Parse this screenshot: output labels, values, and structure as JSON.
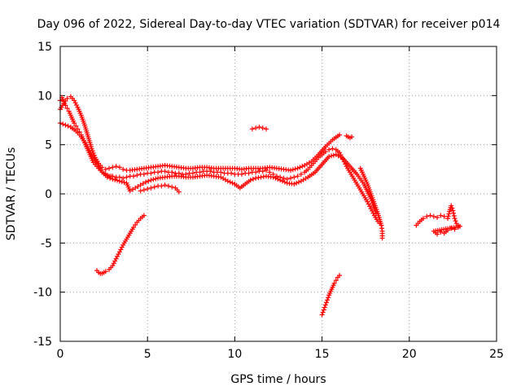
{
  "chart_data": {
    "type": "scatter",
    "title": "Day 096 of 2022, Sidereal Day-to-day VTEC variation (SDTVAR) for receiver p014",
    "xlabel": "GPS time / hours",
    "ylabel": "SDTVAR / TECUs",
    "xlim": [
      0,
      25
    ],
    "ylim": [
      -15,
      15
    ],
    "xticks": [
      "0",
      "5",
      "10",
      "15",
      "20",
      "25"
    ],
    "yticks": [
      "-15",
      "-10",
      "-5",
      "0",
      "5",
      "10",
      "15"
    ],
    "grid": true,
    "marker": "+",
    "color": "#ff0000",
    "series": [
      {
        "name": "main-trace",
        "x": [
          0.0,
          0.1,
          0.2,
          0.3,
          0.4,
          0.5,
          0.6,
          0.7,
          0.8,
          0.9,
          1.0,
          1.1,
          1.2,
          1.3,
          1.4,
          1.5,
          1.6,
          1.7,
          1.8,
          1.9,
          2.0,
          2.1,
          2.2,
          2.3,
          2.4,
          2.5,
          2.6,
          2.7,
          2.8,
          2.9,
          3.0,
          3.2,
          3.4,
          3.6,
          3.8,
          4.0,
          4.2,
          4.4,
          4.6,
          4.8,
          5.0,
          5.2,
          5.4,
          5.6,
          5.8,
          6.0,
          6.2,
          6.4,
          6.6,
          6.8,
          7.0,
          7.2,
          7.4,
          7.6,
          7.8,
          8.0,
          8.2,
          8.4,
          8.6,
          8.8,
          9.0,
          9.2,
          9.4,
          9.6,
          9.8,
          10.0,
          10.2,
          10.4,
          10.6,
          10.8,
          11.0,
          11.2,
          11.4,
          11.6,
          11.8,
          12.0,
          12.2,
          12.4,
          12.6,
          12.8,
          13.0,
          13.2,
          13.4,
          13.6,
          13.8,
          14.0,
          14.2,
          14.4,
          14.6,
          14.8,
          15.0,
          15.2,
          15.4,
          15.6,
          15.8,
          16.0,
          16.2,
          16.4,
          16.6,
          16.8,
          17.0,
          17.2,
          17.4,
          17.6,
          17.8,
          18.0,
          18.2,
          18.4
        ],
        "y": [
          9.5,
          9.8,
          9.4,
          9.0,
          8.7,
          8.4,
          8.0,
          7.6,
          7.2,
          6.9,
          6.6,
          6.3,
          6.0,
          5.6,
          5.2,
          4.8,
          4.4,
          4.0,
          3.6,
          3.2,
          3.0,
          2.8,
          2.6,
          2.4,
          2.2,
          2.1,
          2.0,
          1.9,
          1.8,
          1.8,
          1.8,
          1.7,
          1.7,
          1.6,
          1.7,
          1.8,
          1.8,
          1.9,
          2.0,
          2.0,
          2.1,
          2.1,
          2.2,
          2.2,
          2.3,
          2.3,
          2.2,
          2.2,
          2.1,
          2.1,
          2.0,
          2.0,
          2.1,
          2.1,
          2.2,
          2.2,
          2.3,
          2.3,
          2.3,
          2.2,
          2.2,
          2.2,
          2.1,
          2.1,
          2.1,
          2.0,
          2.0,
          2.0,
          2.1,
          2.1,
          2.2,
          2.2,
          2.3,
          2.3,
          2.4,
          2.2,
          2.0,
          1.8,
          1.7,
          1.6,
          1.5,
          1.6,
          1.7,
          1.8,
          2.0,
          2.2,
          2.5,
          2.9,
          3.3,
          3.7,
          4.0,
          4.3,
          4.5,
          4.6,
          4.5,
          4.2,
          3.5,
          2.8,
          2.2,
          1.6,
          1.0,
          0.4,
          -0.2,
          -0.8,
          -1.5,
          -2.2,
          -2.8,
          -3.2
        ]
      },
      {
        "name": "upper-band",
        "x": [
          0.0,
          0.2,
          0.4,
          0.6,
          0.8,
          1.0,
          1.2,
          1.4,
          1.6,
          1.8,
          2.0,
          2.2,
          2.4,
          2.6,
          2.8,
          3.0,
          3.2,
          3.4,
          3.6,
          3.8,
          4.0,
          4.4,
          4.8,
          5.2,
          5.6,
          6.0,
          6.4,
          6.8,
          7.2,
          7.6,
          8.0,
          8.4,
          8.8,
          9.2,
          9.6,
          10.0,
          10.4,
          10.8,
          11.2,
          11.6,
          12.0,
          12.4,
          12.8,
          13.2,
          13.6,
          14.0,
          14.4,
          14.8,
          15.2,
          15.6,
          16.0
        ],
        "y": [
          8.6,
          9.2,
          9.7,
          9.9,
          9.5,
          8.8,
          8.0,
          7.0,
          5.8,
          4.6,
          3.7,
          3.1,
          2.7,
          2.5,
          2.6,
          2.7,
          2.8,
          2.7,
          2.5,
          2.4,
          2.4,
          2.5,
          2.6,
          2.7,
          2.8,
          2.9,
          2.8,
          2.7,
          2.6,
          2.6,
          2.7,
          2.7,
          2.6,
          2.6,
          2.6,
          2.6,
          2.5,
          2.6,
          2.6,
          2.6,
          2.7,
          2.6,
          2.5,
          2.4,
          2.6,
          2.9,
          3.3,
          4.0,
          4.8,
          5.5,
          6.0
        ]
      },
      {
        "name": "lower-band",
        "x": [
          0.0,
          0.3,
          0.6,
          0.9,
          1.2,
          1.5,
          1.8,
          2.1,
          2.4,
          2.7,
          3.0,
          3.4,
          3.8,
          4.0,
          4.3,
          4.6,
          4.9,
          5.2,
          5.6,
          6.0,
          6.4,
          6.8,
          7.2,
          7.6,
          8.0,
          8.4,
          8.8,
          9.2,
          9.6,
          10.0,
          10.3,
          10.6,
          10.9,
          11.2,
          11.5,
          11.8,
          12.2,
          12.6,
          13.0,
          13.4,
          13.8,
          14.2,
          14.6,
          15.0,
          15.4,
          15.8,
          16.2,
          16.6,
          17.0,
          17.4,
          17.8,
          18.1
        ],
        "y": [
          7.2,
          7.0,
          6.8,
          6.4,
          5.8,
          5.0,
          4.0,
          3.0,
          2.2,
          1.7,
          1.5,
          1.3,
          1.1,
          0.3,
          0.6,
          0.9,
          1.2,
          1.4,
          1.6,
          1.7,
          1.8,
          1.8,
          1.7,
          1.7,
          1.8,
          1.9,
          1.8,
          1.7,
          1.3,
          1.0,
          0.6,
          1.0,
          1.4,
          1.6,
          1.7,
          1.8,
          1.7,
          1.4,
          1.1,
          1.0,
          1.3,
          1.7,
          2.2,
          3.0,
          3.8,
          4.0,
          3.6,
          2.8,
          2.0,
          1.0,
          -0.5,
          -2.0
        ]
      },
      {
        "name": "late-morning-fragment",
        "x": [
          4.6,
          4.8,
          5.0,
          5.2,
          5.4,
          5.6,
          5.8,
          6.0,
          6.2,
          6.4,
          6.6,
          6.8
        ],
        "y": [
          0.3,
          0.4,
          0.5,
          0.6,
          0.7,
          0.8,
          0.8,
          0.9,
          0.8,
          0.7,
          0.6,
          0.2
        ]
      },
      {
        "name": "noon-fragment",
        "x": [
          11.0,
          11.2,
          11.4,
          11.6,
          11.8
        ],
        "y": [
          6.6,
          6.7,
          6.8,
          6.7,
          6.6
        ]
      },
      {
        "name": "evening-fragment",
        "x": [
          16.4,
          16.5,
          16.6,
          16.7
        ],
        "y": [
          5.9,
          5.8,
          5.7,
          5.8
        ]
      },
      {
        "name": "falling-tail",
        "x": [
          17.2,
          17.4,
          17.6,
          17.8,
          18.0,
          18.2,
          18.4,
          18.45,
          18.45
        ],
        "y": [
          2.6,
          1.8,
          1.0,
          0.0,
          -1.0,
          -2.0,
          -3.2,
          -3.8,
          -4.5
        ]
      },
      {
        "name": "negative-rise",
        "x": [
          2.1,
          2.2,
          2.3,
          2.4,
          2.5,
          2.6,
          2.8,
          3.0,
          3.2,
          3.4,
          3.6,
          3.8,
          4.0,
          4.2,
          4.4,
          4.6,
          4.8
        ],
        "y": [
          -7.8,
          -8.0,
          -8.1,
          -8.1,
          -8.0,
          -7.9,
          -7.7,
          -7.3,
          -6.6,
          -5.9,
          -5.2,
          -4.6,
          -4.0,
          -3.4,
          -2.9,
          -2.5,
          -2.2
        ]
      },
      {
        "name": "negative-spike",
        "x": [
          15.0,
          15.1,
          15.2,
          15.3,
          15.4,
          15.5,
          15.6,
          15.7,
          15.8,
          15.9,
          16.0
        ],
        "y": [
          -12.3,
          -11.8,
          -11.3,
          -10.8,
          -10.3,
          -9.9,
          -9.5,
          -9.1,
          -8.8,
          -8.5,
          -8.3
        ]
      },
      {
        "name": "late-cluster",
        "x": [
          20.4,
          20.6,
          20.8,
          21.0,
          21.2,
          21.4,
          21.6,
          21.8,
          22.0,
          22.2,
          22.3,
          22.4,
          22.5,
          22.6,
          22.7,
          22.8,
          22.9,
          21.4,
          21.6,
          21.8,
          22.0,
          22.2,
          22.4,
          22.6,
          22.8
        ],
        "y": [
          -3.2,
          -2.8,
          -2.5,
          -2.3,
          -2.2,
          -2.3,
          -2.4,
          -2.2,
          -2.3,
          -2.5,
          -1.8,
          -1.2,
          -1.7,
          -2.5,
          -3.0,
          -3.2,
          -3.3,
          -3.8,
          -4.1,
          -3.9,
          -4.0,
          -3.7,
          -3.5,
          -3.6,
          -3.4
        ]
      }
    ]
  }
}
